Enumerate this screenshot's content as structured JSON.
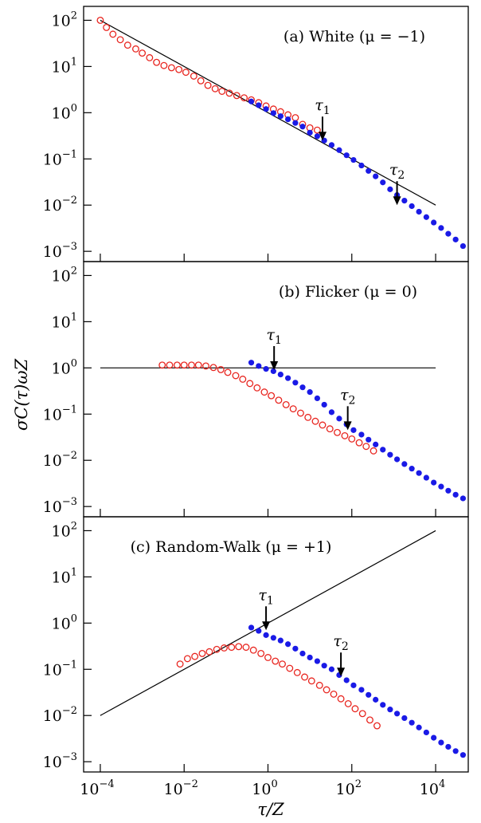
{
  "colors": {
    "measured_open": "#e8251f",
    "measured_filled": "#1a1ae6",
    "reference_line": "#000000",
    "axes": "#000000"
  },
  "figure": {
    "xlabel": "τ/Z",
    "ylabel": "σC(τ)ωZ",
    "x_ticks": [
      {
        "value": -4,
        "base": "10",
        "exp": "−4"
      },
      {
        "value": -2,
        "base": "10",
        "exp": "−2"
      },
      {
        "value": 0,
        "base": "10",
        "exp": "0"
      },
      {
        "value": 2,
        "base": "10",
        "exp": "2"
      },
      {
        "value": 4,
        "base": "10",
        "exp": "4"
      }
    ],
    "y_ticks": [
      {
        "value": 2,
        "base": "10",
        "exp": "2"
      },
      {
        "value": 1,
        "base": "10",
        "exp": "1"
      },
      {
        "value": 0,
        "base": "10",
        "exp": "0"
      },
      {
        "value": -1,
        "base": "10",
        "exp": "−1"
      },
      {
        "value": -2,
        "base": "10",
        "exp": "−2"
      },
      {
        "value": -3,
        "base": "10",
        "exp": "−3"
      }
    ]
  },
  "chart_data": [
    {
      "type": "scatter",
      "title": "(a) White (μ = −1)",
      "xscale": "log",
      "yscale": "log",
      "xlim": [
        4e-05,
        60000
      ],
      "ylim": [
        0.0006,
        200
      ],
      "reference_line": {
        "x": [
          0.0001,
          10000
        ],
        "y": [
          100,
          0.01
        ]
      },
      "annotations": [
        {
          "label": "τ1",
          "x": 20,
          "y": 0.25
        },
        {
          "label": "τ2",
          "x": 1200,
          "y": 0.01
        }
      ],
      "series": [
        {
          "style": "open",
          "x": [
            0.0001,
            0.00014,
            0.0002,
            0.0003,
            0.00045,
            0.0007,
            0.001,
            0.0015,
            0.0022,
            0.0033,
            0.005,
            0.0075,
            0.011,
            0.017,
            0.025,
            0.037,
            0.055,
            0.08,
            0.12,
            0.18,
            0.27,
            0.4,
            0.6,
            0.9,
            1.35,
            2.0,
            3.0,
            4.5,
            6.7,
            10,
            15
          ],
          "y": [
            100,
            70,
            50,
            38,
            29,
            24,
            19.5,
            15.5,
            12.3,
            10.5,
            9.4,
            8.6,
            7.5,
            6.2,
            4.9,
            3.9,
            3.3,
            2.9,
            2.65,
            2.35,
            2.1,
            1.9,
            1.65,
            1.4,
            1.2,
            1.05,
            0.9,
            0.78,
            0.56,
            0.47,
            0.42
          ]
        },
        {
          "style": "filled",
          "x": [
            0.4,
            0.6,
            0.9,
            1.35,
            2.0,
            3.0,
            4.5,
            6.7,
            10,
            15,
            22,
            33,
            50,
            75,
            110,
            170,
            250,
            370,
            550,
            820,
            1200,
            1800,
            2700,
            4000,
            6000,
            9000,
            13500,
            20000,
            30000,
            45000
          ],
          "y": [
            1.75,
            1.45,
            1.2,
            0.98,
            0.84,
            0.72,
            0.6,
            0.5,
            0.37,
            0.31,
            0.25,
            0.2,
            0.155,
            0.12,
            0.095,
            0.072,
            0.055,
            0.042,
            0.031,
            0.022,
            0.0165,
            0.0125,
            0.0095,
            0.0072,
            0.0055,
            0.0042,
            0.0032,
            0.0024,
            0.0018,
            0.0013
          ]
        }
      ]
    },
    {
      "type": "scatter",
      "title": "(b) Flicker (μ = 0)",
      "xscale": "log",
      "yscale": "log",
      "xlim": [
        4e-05,
        60000
      ],
      "ylim": [
        0.0006,
        200
      ],
      "reference_line": {
        "x": [
          0.0001,
          10000
        ],
        "y": [
          1,
          1
        ]
      },
      "annotations": [
        {
          "label": "τ1",
          "x": 1.4,
          "y": 0.9
        },
        {
          "label": "τ2",
          "x": 80,
          "y": 0.045
        }
      ],
      "series": [
        {
          "style": "open",
          "x": [
            0.003,
            0.0045,
            0.0068,
            0.01,
            0.015,
            0.022,
            0.033,
            0.05,
            0.075,
            0.11,
            0.17,
            0.25,
            0.37,
            0.55,
            0.82,
            1.2,
            1.8,
            2.7,
            4.0,
            6.0,
            9.0,
            13.5,
            20,
            30,
            45,
            68,
            100,
            150,
            220,
            330
          ],
          "y": [
            1.15,
            1.15,
            1.15,
            1.15,
            1.15,
            1.15,
            1.1,
            1.02,
            0.92,
            0.8,
            0.68,
            0.57,
            0.46,
            0.37,
            0.3,
            0.25,
            0.2,
            0.16,
            0.13,
            0.105,
            0.085,
            0.07,
            0.058,
            0.048,
            0.04,
            0.034,
            0.029,
            0.024,
            0.02,
            0.016
          ]
        },
        {
          "style": "filled",
          "x": [
            0.4,
            0.6,
            0.9,
            1.35,
            2.0,
            3.0,
            4.5,
            6.7,
            10,
            15,
            22,
            33,
            50,
            75,
            110,
            170,
            250,
            370,
            550,
            820,
            1200,
            1800,
            2700,
            4000,
            6000,
            9000,
            13500,
            20000,
            30000,
            45000
          ],
          "y": [
            1.3,
            1.1,
            0.95,
            0.85,
            0.72,
            0.6,
            0.48,
            0.38,
            0.3,
            0.22,
            0.16,
            0.11,
            0.08,
            0.06,
            0.045,
            0.036,
            0.028,
            0.022,
            0.017,
            0.0132,
            0.0105,
            0.0083,
            0.0066,
            0.0053,
            0.0042,
            0.0033,
            0.0027,
            0.0022,
            0.0018,
            0.0015
          ]
        }
      ]
    },
    {
      "type": "scatter",
      "title": "(c) Random-Walk (μ = +1)",
      "xscale": "log",
      "yscale": "log",
      "xlim": [
        4e-05,
        60000
      ],
      "ylim": [
        0.0006,
        200
      ],
      "reference_line": {
        "x": [
          0.0001,
          10000
        ],
        "y": [
          0.01,
          100
        ]
      },
      "annotations": [
        {
          "label": "τ1",
          "x": 0.9,
          "y": 0.7
        },
        {
          "label": "τ2",
          "x": 55,
          "y": 0.07
        }
      ],
      "series": [
        {
          "style": "open",
          "x": [
            0.008,
            0.012,
            0.018,
            0.027,
            0.04,
            0.06,
            0.09,
            0.135,
            0.2,
            0.3,
            0.45,
            0.68,
            1.0,
            1.5,
            2.2,
            3.3,
            5.0,
            7.5,
            11,
            17,
            25,
            37,
            55,
            82,
            120,
            180,
            270,
            400
          ],
          "y": [
            0.13,
            0.17,
            0.19,
            0.22,
            0.24,
            0.27,
            0.29,
            0.3,
            0.31,
            0.3,
            0.26,
            0.22,
            0.18,
            0.15,
            0.13,
            0.105,
            0.085,
            0.068,
            0.056,
            0.045,
            0.036,
            0.029,
            0.023,
            0.018,
            0.014,
            0.011,
            0.008,
            0.006
          ]
        },
        {
          "style": "filled",
          "x": [
            0.4,
            0.6,
            0.9,
            1.35,
            2.0,
            3.0,
            4.5,
            6.7,
            10,
            15,
            22,
            33,
            50,
            75,
            110,
            170,
            250,
            370,
            550,
            820,
            1200,
            1800,
            2700,
            4000,
            6000,
            9000,
            13500,
            20000,
            30000,
            45000
          ],
          "y": [
            0.8,
            0.68,
            0.55,
            0.48,
            0.42,
            0.35,
            0.28,
            0.22,
            0.18,
            0.15,
            0.12,
            0.1,
            0.075,
            0.058,
            0.045,
            0.036,
            0.028,
            0.022,
            0.017,
            0.0135,
            0.011,
            0.0088,
            0.007,
            0.0055,
            0.0043,
            0.0033,
            0.0026,
            0.0021,
            0.0017,
            0.0014
          ]
        }
      ]
    }
  ]
}
